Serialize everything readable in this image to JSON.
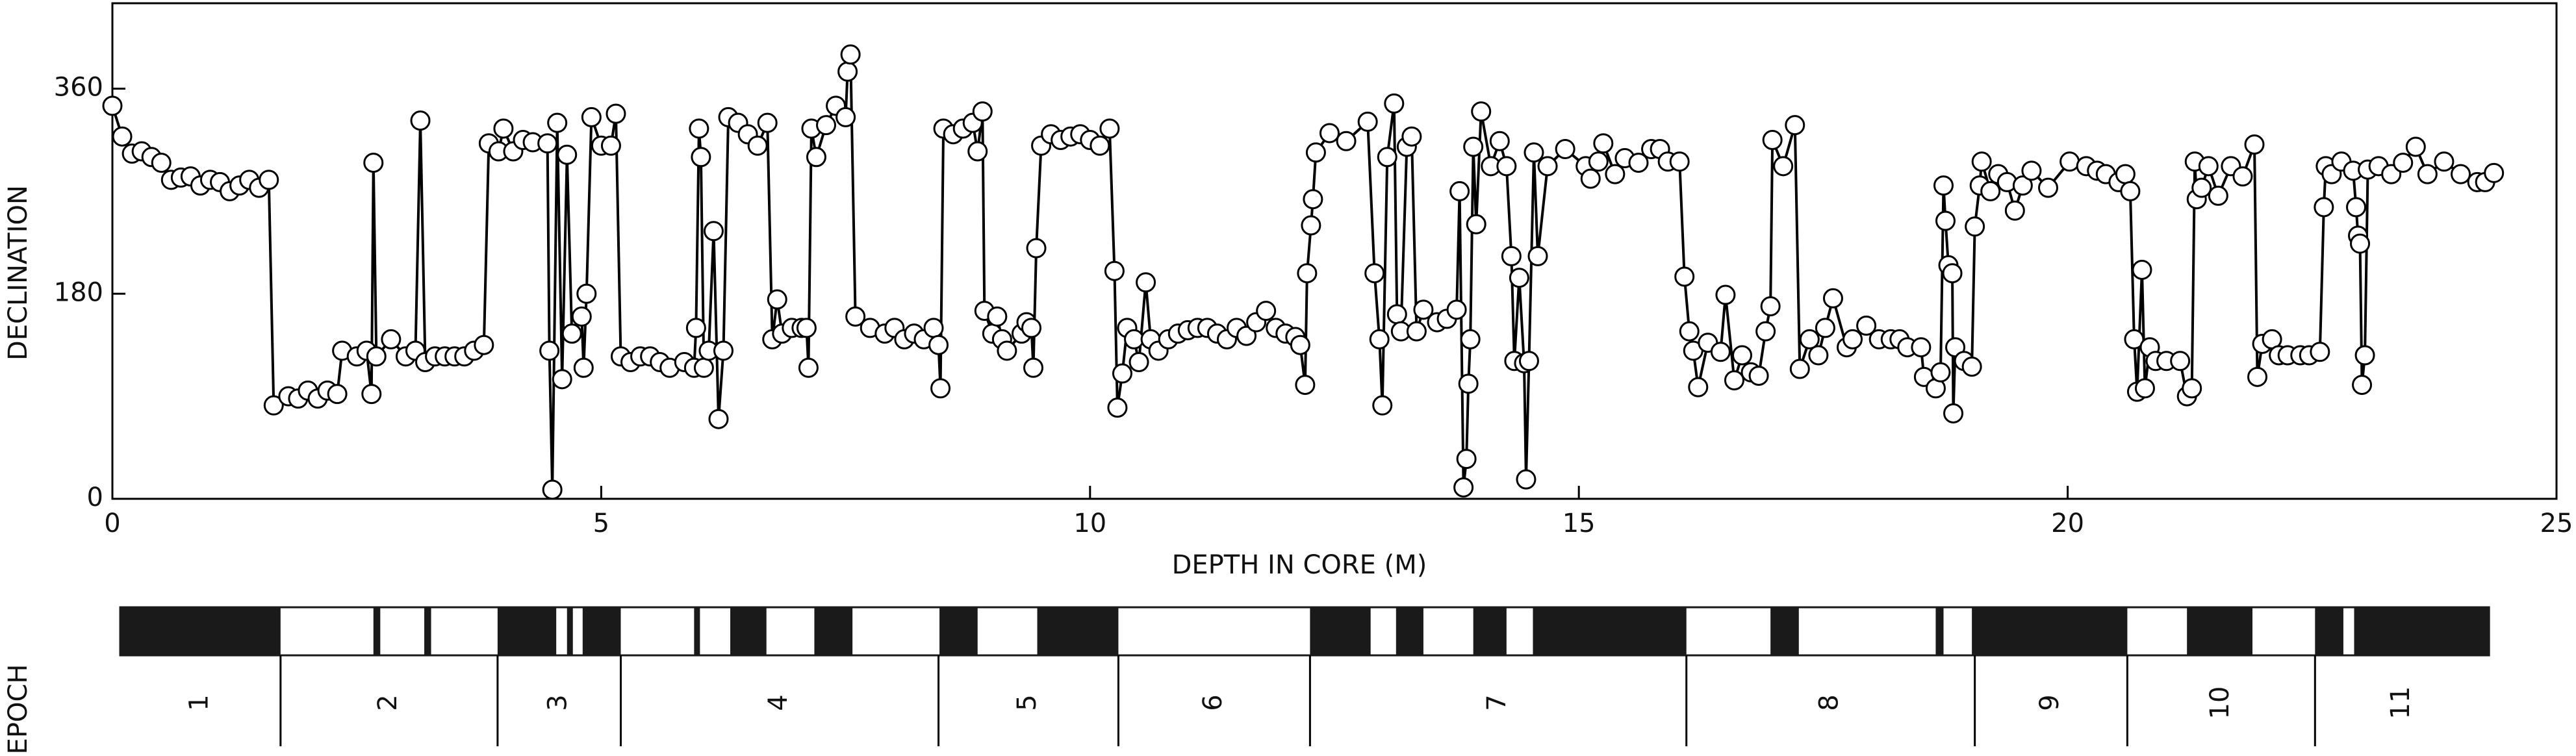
{
  "chart_data": {
    "type": "line",
    "xlabel": "DEPTH IN CORE (M)",
    "ylabel": "DECLINATION",
    "x": [
      0,
      0.1,
      0.2,
      0.3,
      0.4,
      0.5,
      0.6,
      0.7,
      0.8,
      0.9,
      1.0,
      1.1,
      1.2,
      1.3,
      1.4,
      1.5,
      1.6,
      1.65,
      1.8,
      1.9,
      2.0,
      2.1,
      2.2,
      2.3,
      2.35,
      2.5,
      2.6,
      2.65,
      2.67,
      2.7,
      2.85,
      3.0,
      3.1,
      3.15,
      3.2,
      3.3,
      3.4,
      3.5,
      3.6,
      3.7,
      3.8,
      3.85,
      3.95,
      4.0,
      4.1,
      4.2,
      4.3,
      4.45,
      4.47,
      4.5,
      4.55,
      4.6,
      4.65,
      4.7,
      4.8,
      4.82,
      4.85,
      4.9,
      5.0,
      5.1,
      5.15,
      5.2,
      5.3,
      5.4,
      5.5,
      5.6,
      5.7,
      5.85,
      5.95,
      5.97,
      6.0,
      6.02,
      6.05,
      6.1,
      6.15,
      6.2,
      6.25,
      6.3,
      6.4,
      6.5,
      6.6,
      6.7,
      6.75,
      6.8,
      6.85,
      6.95,
      7.05,
      7.1,
      7.12,
      7.15,
      7.2,
      7.3,
      7.4,
      7.5,
      7.52,
      7.55,
      7.6,
      7.75,
      7.9,
      8.0,
      8.1,
      8.2,
      8.3,
      8.4,
      8.45,
      8.47,
      8.5,
      8.6,
      8.7,
      8.8,
      8.85,
      8.9,
      8.92,
      9.0,
      9.05,
      9.1,
      9.15,
      9.3,
      9.35,
      9.4,
      9.42,
      9.45,
      9.5,
      9.6,
      9.7,
      9.8,
      9.9,
      10.0,
      10.1,
      10.2,
      10.25,
      10.28,
      10.33,
      10.38,
      10.45,
      10.5,
      10.57,
      10.62,
      10.7,
      10.8,
      10.9,
      11.0,
      11.1,
      11.2,
      11.3,
      11.4,
      11.5,
      11.6,
      11.7,
      11.8,
      11.9,
      12.0,
      12.1,
      12.15,
      12.2,
      12.22,
      12.26,
      12.28,
      12.31,
      12.45,
      12.62,
      12.84,
      12.91,
      12.96,
      12.99,
      13.04,
      13.11,
      13.14,
      13.18,
      13.24,
      13.29,
      13.34,
      13.41,
      13.55,
      13.65,
      13.75,
      13.78,
      13.82,
      13.85,
      13.87,
      13.89,
      13.92,
      13.95,
      14.0,
      14.1,
      14.19,
      14.26,
      14.31,
      14.34,
      14.39,
      14.44,
      14.46,
      14.49,
      14.54,
      14.58,
      14.68,
      14.86,
      15.07,
      15.12,
      15.2,
      15.25,
      15.37,
      15.47,
      15.61,
      15.74,
      15.83,
      15.91,
      16.03,
      16.08,
      16.13,
      16.17,
      16.22,
      16.32,
      16.45,
      16.5,
      16.59,
      16.67,
      16.76,
      16.84,
      16.91,
      16.96,
      16.98,
      17.09,
      17.21,
      17.26,
      17.36,
      17.45,
      17.52,
      17.6,
      17.74,
      17.8,
      17.94,
      18.07,
      18.19,
      18.28,
      18.36,
      18.5,
      18.53,
      18.65,
      18.7,
      18.73,
      18.75,
      18.78,
      18.82,
      18.83,
      18.85,
      18.94,
      19.02,
      19.05,
      19.1,
      19.12,
      19.21,
      19.29,
      19.38,
      19.46,
      19.54,
      19.63,
      19.8,
      20.02,
      20.19,
      20.3,
      20.39,
      20.52,
      20.59,
      20.64,
      20.68,
      20.71,
      20.76,
      20.79,
      20.84,
      20.9,
      21.01,
      21.15,
      21.22,
      21.27,
      21.3,
      21.32,
      21.37,
      21.44,
      21.54,
      21.67,
      21.79,
      21.91,
      21.94,
      21.99,
      22.09,
      22.16,
      22.25,
      22.38,
      22.47,
      22.58,
      22.62,
      22.64,
      22.7,
      22.8,
      22.92,
      22.95,
      22.97,
      22.99,
      23.01,
      23.04,
      23.07,
      23.18,
      23.31,
      23.43,
      23.56,
      23.68,
      23.85,
      24.02,
      24.19,
      24.27,
      24.36
    ],
    "values": [
      345,
      318,
      303,
      305,
      300,
      295,
      280,
      282,
      283,
      275,
      280,
      278,
      270,
      275,
      280,
      273,
      280,
      82,
      90,
      88,
      95,
      88,
      95,
      92,
      130,
      125,
      130,
      92,
      295,
      125,
      140,
      125,
      130,
      332,
      120,
      125,
      125,
      125,
      125,
      130,
      135,
      312,
      305,
      325,
      305,
      315,
      313,
      312,
      130,
      8,
      330,
      105,
      302,
      145,
      160,
      115,
      180,
      335,
      310,
      310,
      338,
      125,
      120,
      125,
      125,
      120,
      115,
      120,
      115,
      150,
      325,
      300,
      115,
      130,
      235,
      70,
      130,
      335,
      330,
      320,
      310,
      330,
      140,
      175,
      145,
      150,
      150,
      150,
      115,
      325,
      300,
      328,
      345,
      335,
      375,
      390,
      160,
      150,
      145,
      150,
      140,
      145,
      140,
      150,
      135,
      97,
      325,
      320,
      325,
      330,
      305,
      340,
      165,
      145,
      160,
      140,
      130,
      145,
      155,
      150,
      115,
      220,
      310,
      320,
      315,
      318,
      320,
      315,
      310,
      325,
      200,
      80,
      110,
      150,
      140,
      120,
      190,
      140,
      130,
      140,
      145,
      148,
      150,
      150,
      145,
      140,
      150,
      143,
      155,
      165,
      150,
      145,
      142,
      135,
      100,
      198,
      240,
      263,
      304,
      321,
      314,
      331,
      198,
      140,
      82,
      300,
      347,
      162,
      147,
      309,
      318,
      147,
      166,
      155,
      158,
      166,
      270,
      10,
      35,
      101,
      140,
      309,
      241,
      340,
      292,
      314,
      292,
      213,
      121,
      194,
      119,
      17,
      121,
      304,
      213,
      292,
      307,
      292,
      281,
      296,
      312,
      285,
      299,
      295,
      307,
      307,
      296,
      296,
      195,
      147,
      130,
      98,
      137,
      129,
      179,
      104,
      126,
      111,
      108,
      147,
      169,
      315,
      292,
      328,
      114,
      140,
      126,
      150,
      176,
      133,
      140,
      152,
      140,
      140,
      140,
      133,
      133,
      107,
      97,
      111,
      275,
      244,
      205,
      198,
      75,
      133,
      121,
      116,
      239,
      275,
      296,
      270,
      285,
      278,
      253,
      275,
      288,
      273,
      296,
      292,
      288,
      285,
      278,
      285,
      270,
      140,
      94,
      201,
      97,
      133,
      121,
      121,
      121,
      90,
      97,
      296,
      263,
      273,
      292,
      266,
      292,
      283,
      311,
      107,
      136,
      140,
      126,
      126,
      126,
      126,
      129,
      256,
      292,
      285,
      296,
      288,
      256,
      231,
      224,
      100,
      126,
      289,
      292,
      285,
      295,
      309,
      285,
      296,
      285,
      278,
      278,
      286
    ],
    "color": "#000000",
    "marker_fill": "#ffffff",
    "xlim": [
      0,
      25
    ],
    "xticks": [
      0,
      5,
      10,
      15,
      20,
      25
    ],
    "ylim": [
      0,
      435
    ],
    "yticks": [
      0,
      180,
      360
    ],
    "polarity": {
      "range": [
        0.08,
        24.31
      ],
      "color": "#1a1a1a",
      "normal": [
        [
          0.08,
          1.72
        ],
        [
          2.67,
          2.74
        ],
        [
          3.19,
          3.26
        ],
        [
          3.94,
          4.54
        ],
        [
          4.65,
          4.71
        ],
        [
          4.81,
          5.2
        ],
        [
          5.95,
          6.01
        ],
        [
          6.32,
          6.69
        ],
        [
          7.18,
          7.57
        ],
        [
          8.46,
          8.85
        ],
        [
          9.46,
          10.29
        ],
        [
          12.25,
          12.87
        ],
        [
          13.13,
          13.41
        ],
        [
          13.92,
          14.26
        ],
        [
          14.53,
          16.1
        ],
        [
          16.96,
          17.25
        ],
        [
          18.65,
          18.73
        ],
        [
          19.02,
          20.61
        ],
        [
          21.22,
          21.89
        ],
        [
          22.53,
          22.82
        ],
        [
          22.93,
          24.31
        ]
      ]
    },
    "epochs": {
      "label": "EPOCH",
      "names": [
        "1",
        "2",
        "3",
        "4",
        "5",
        "6",
        "7",
        "8",
        "9",
        "10",
        "11"
      ],
      "boundaries": [
        1.72,
        3.94,
        5.2,
        8.45,
        10.29,
        12.25,
        16.1,
        19.05,
        20.61,
        22.53
      ]
    }
  }
}
